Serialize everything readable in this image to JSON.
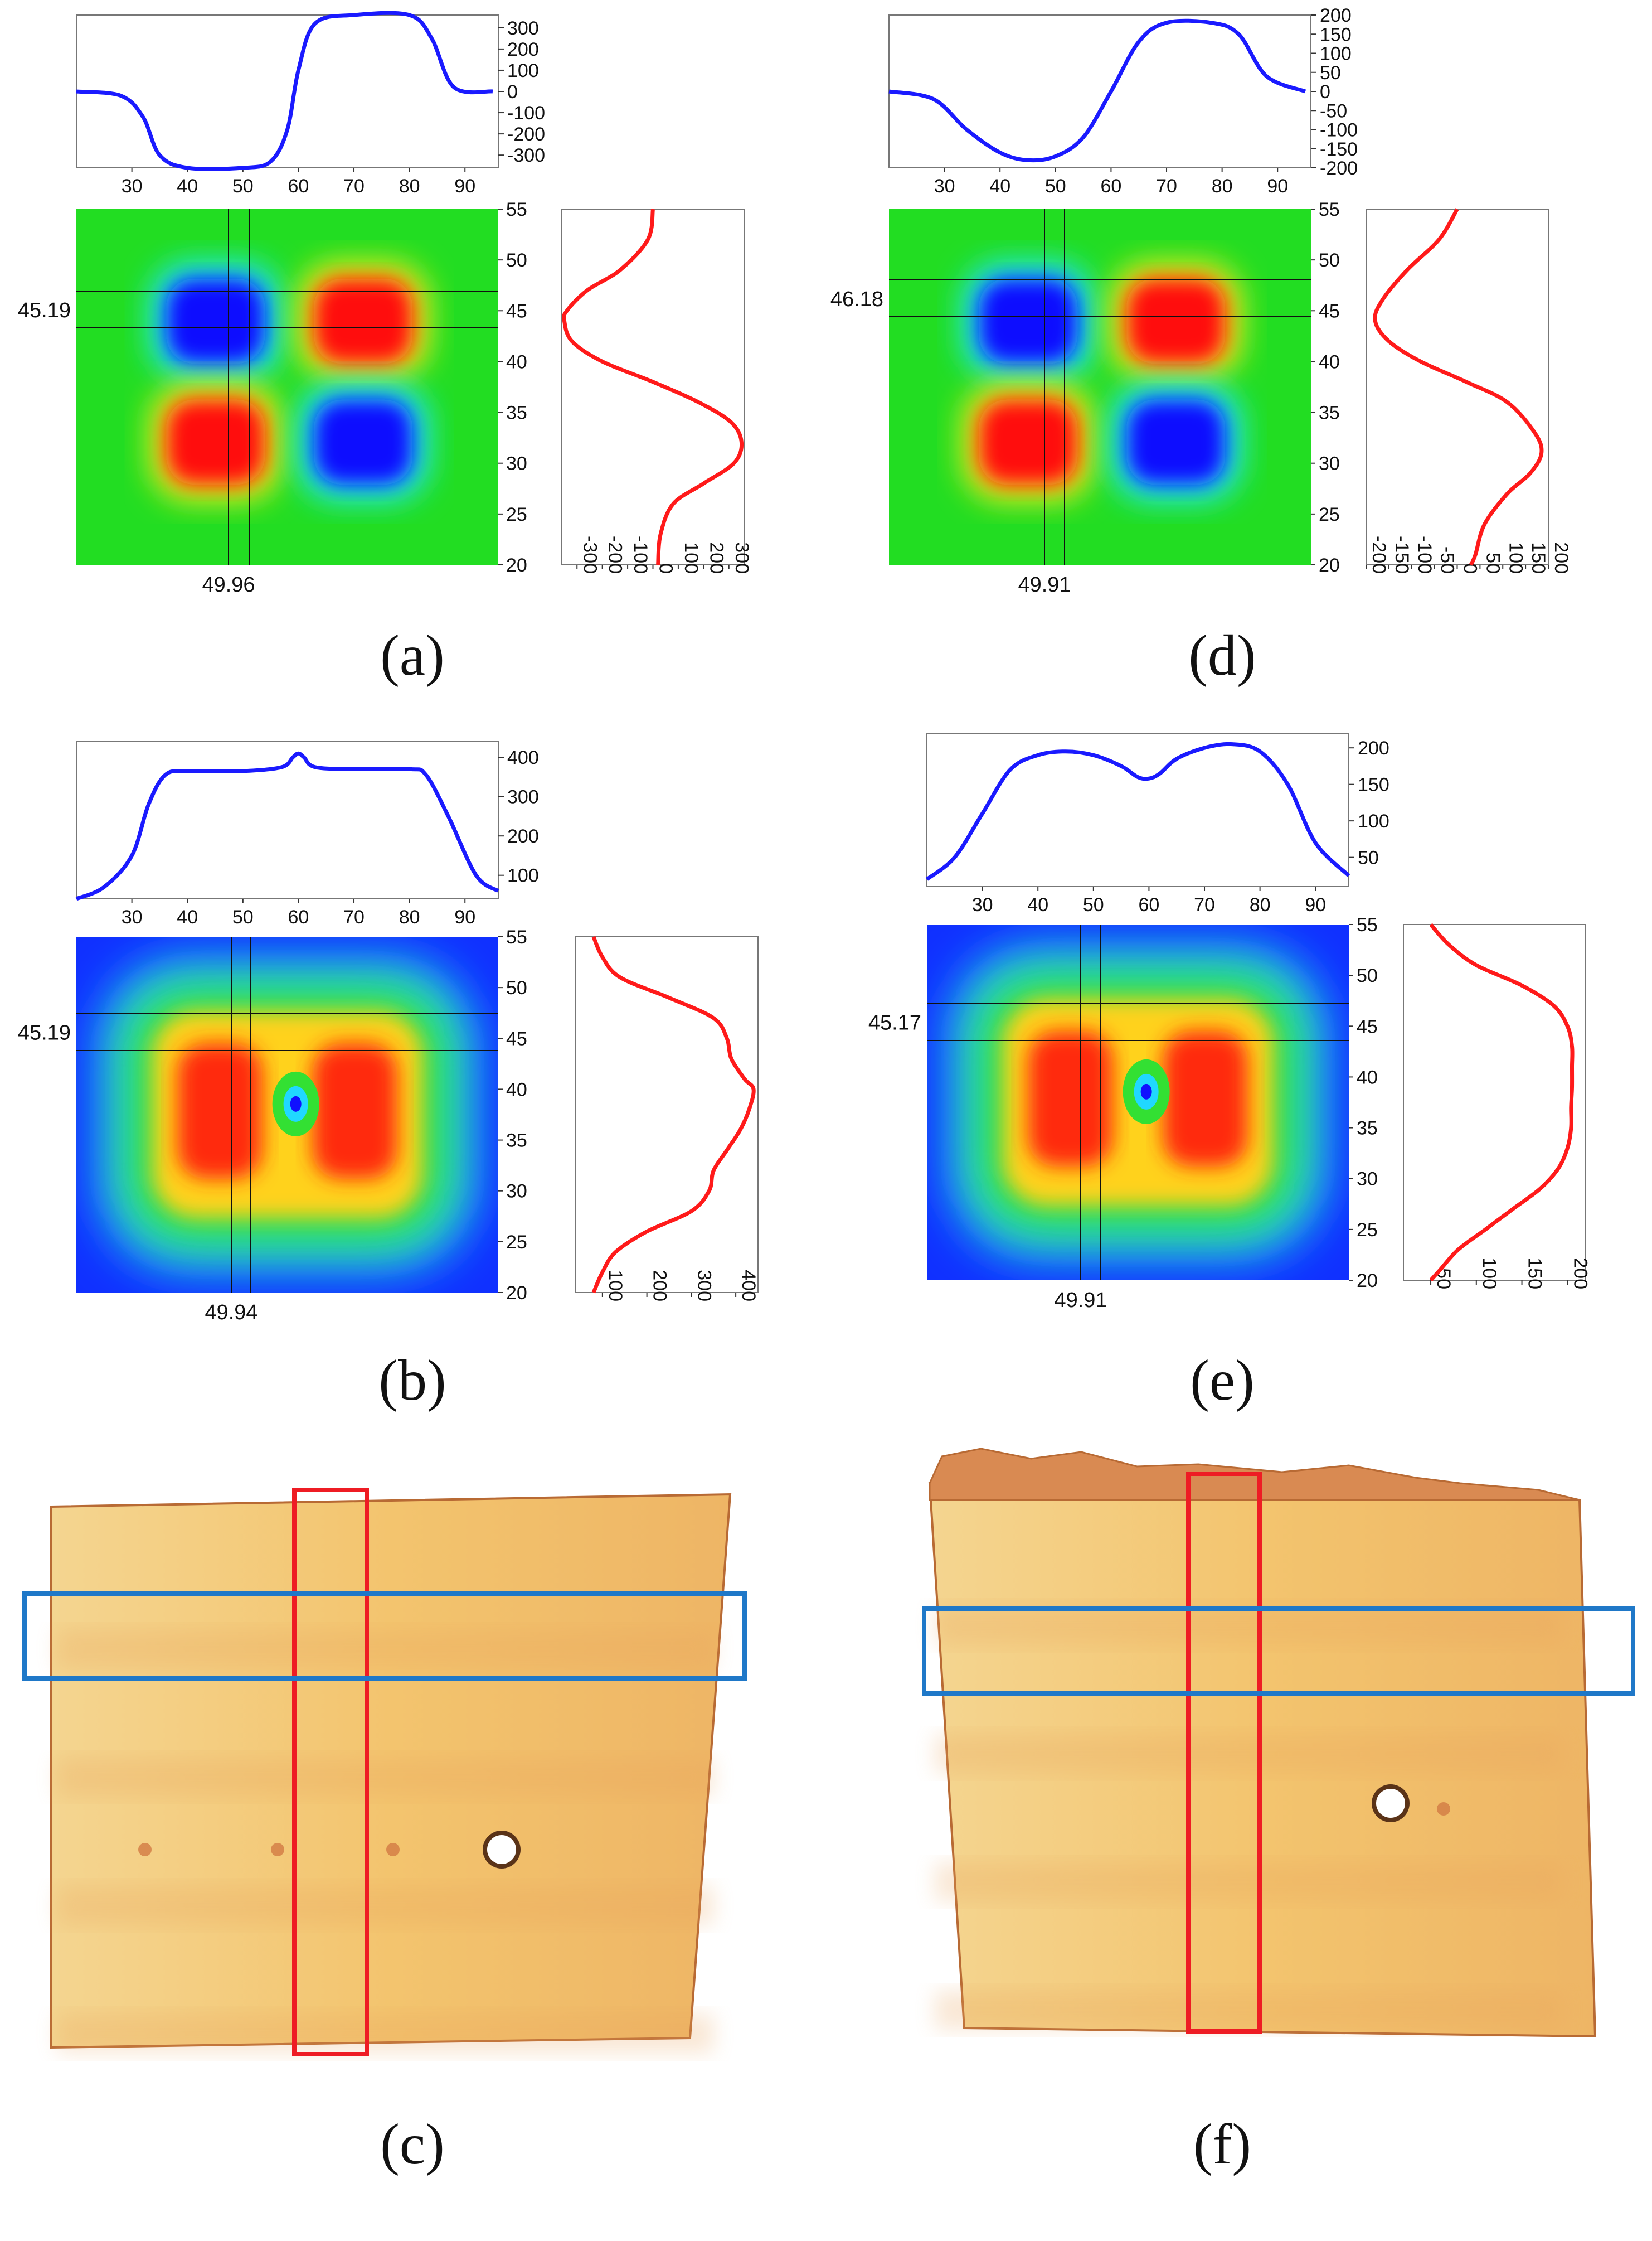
{
  "figure": {
    "panels": [
      {
        "id": "a",
        "label": "(a)",
        "kind": "map",
        "pattern": "quad",
        "map_colors": [
          "#1010ff",
          "#ff1010",
          "#ff1010",
          "#1010ff"
        ],
        "cursor_y_text": "45.19",
        "cursor_x_text": "49.96",
        "top_profile": {
          "yticks": [
            "300",
            "200",
            "100",
            "0",
            "-100",
            "-200",
            "-300"
          ],
          "xticks": [
            "30",
            "40",
            "50",
            "60",
            "70",
            "80",
            "90"
          ]
        },
        "right_profile": {
          "yticks": [
            "55",
            "50",
            "45",
            "40",
            "35",
            "30",
            "25",
            "20"
          ],
          "xticks": [
            "-300",
            "-200",
            "-100",
            "0",
            "100",
            "200",
            "300"
          ]
        }
      },
      {
        "id": "d",
        "label": "(d)",
        "kind": "map",
        "pattern": "quad",
        "map_colors": [
          "#1010ff",
          "#ff1010",
          "#ff1010",
          "#1010ff"
        ],
        "cursor_y_text": "46.18",
        "cursor_x_text": "49.91",
        "top_profile": {
          "yticks": [
            "200",
            "150",
            "100",
            "50",
            "0",
            "-50",
            "-100",
            "-150",
            "-200"
          ],
          "xticks": [
            "30",
            "40",
            "50",
            "60",
            "70",
            "80",
            "90"
          ]
        },
        "right_profile": {
          "yticks": [
            "55",
            "50",
            "45",
            "40",
            "35",
            "30",
            "25",
            "20"
          ],
          "xticks": [
            "-200",
            "-150",
            "-100",
            "-50",
            "0",
            "50",
            "100",
            "150",
            "200"
          ]
        }
      },
      {
        "id": "b",
        "label": "(b)",
        "kind": "map",
        "pattern": "magnitude",
        "cursor_y_text": "45.19",
        "cursor_x_text": "49.94",
        "top_profile": {
          "yticks": [
            "400",
            "300",
            "200",
            "100"
          ],
          "xticks": [
            "30",
            "40",
            "50",
            "60",
            "70",
            "80",
            "90"
          ]
        },
        "right_profile": {
          "yticks": [
            "55",
            "50",
            "45",
            "40",
            "35",
            "30",
            "25",
            "20"
          ],
          "xticks": [
            "100",
            "200",
            "300",
            "400"
          ]
        }
      },
      {
        "id": "e",
        "label": "(e)",
        "kind": "map",
        "pattern": "magnitude",
        "cursor_y_text": "45.17",
        "cursor_x_text": "49.91",
        "top_profile": {
          "yticks": [
            "200",
            "150",
            "100",
            "50"
          ],
          "xticks": [
            "30",
            "40",
            "50",
            "60",
            "70",
            "80",
            "90"
          ]
        },
        "right_profile": {
          "yticks": [
            "55",
            "50",
            "45",
            "40",
            "35",
            "30",
            "25",
            "20"
          ],
          "xticks": [
            "50",
            "100",
            "150",
            "200"
          ]
        }
      },
      {
        "id": "c",
        "label": "(c)",
        "kind": "photo"
      },
      {
        "id": "f",
        "label": "(f)",
        "kind": "photo"
      }
    ]
  },
  "colors": {
    "profile_horizontal": "#1a1aff",
    "profile_vertical": "#ff1a1a",
    "map_background": "#22dd22",
    "map_background_magnitude": "#1030ff",
    "photo_fill": "#f6cf7c",
    "photo_edge": "#b86a34",
    "roi_red": "#ee1c24",
    "roi_blue": "#1f78c8",
    "hole": "#ffffff"
  },
  "chart_data": [
    {
      "type": "line",
      "panel": "a",
      "orientation": "horizontal",
      "title": "",
      "x": [
        20,
        28,
        32,
        35,
        40,
        50,
        55,
        58,
        60,
        63,
        70,
        80,
        84,
        88,
        95
      ],
      "y": [
        0,
        -20,
        -120,
        -300,
        -360,
        -360,
        -330,
        -180,
        100,
        320,
        360,
        360,
        250,
        20,
        0
      ],
      "xlim": [
        20,
        96
      ],
      "ylim": [
        -360,
        360
      ],
      "xlabel": "",
      "ylabel": ""
    },
    {
      "type": "line",
      "panel": "a",
      "orientation": "vertical",
      "title": "",
      "y": [
        55,
        52,
        49,
        47,
        45,
        44,
        42,
        40,
        38,
        36,
        34,
        32,
        30,
        28,
        26,
        23,
        20
      ],
      "x": [
        0,
        -20,
        -130,
        -260,
        -340,
        -350,
        -320,
        -200,
        0,
        180,
        310,
        350,
        320,
        200,
        80,
        30,
        20
      ],
      "xlim": [
        -360,
        360
      ],
      "ylim": [
        20,
        55
      ],
      "xlabel": "",
      "ylabel": ""
    },
    {
      "type": "line",
      "panel": "d",
      "orientation": "horizontal",
      "title": "",
      "x": [
        20,
        28,
        34,
        40,
        45,
        50,
        55,
        60,
        65,
        70,
        78,
        83,
        88,
        95
      ],
      "y": [
        0,
        -20,
        -100,
        -160,
        -180,
        -170,
        -120,
        0,
        130,
        180,
        180,
        150,
        40,
        0
      ],
      "xlim": [
        20,
        96
      ],
      "ylim": [
        -200,
        200
      ],
      "xlabel": "",
      "ylabel": ""
    },
    {
      "type": "line",
      "panel": "d",
      "orientation": "vertical",
      "title": "",
      "y": [
        55,
        52,
        49,
        46,
        44,
        42,
        40,
        38,
        36,
        33,
        31,
        29,
        27,
        24,
        21,
        20
      ],
      "x": [
        0,
        -40,
        -110,
        -165,
        -180,
        -150,
        -80,
        20,
        110,
        170,
        185,
        160,
        110,
        60,
        40,
        30
      ],
      "xlim": [
        -200,
        200
      ],
      "ylim": [
        20,
        55
      ],
      "xlabel": "",
      "ylabel": ""
    },
    {
      "type": "line",
      "panel": "b",
      "orientation": "horizontal",
      "title": "",
      "x": [
        20,
        25,
        30,
        33,
        36,
        40,
        50,
        57,
        59,
        60,
        61,
        63,
        70,
        80,
        83,
        87,
        92,
        96
      ],
      "y": [
        40,
        70,
        150,
        280,
        355,
        365,
        365,
        375,
        400,
        410,
        400,
        375,
        370,
        370,
        355,
        250,
        100,
        60
      ],
      "xlim": [
        20,
        96
      ],
      "ylim": [
        40,
        440
      ],
      "xlabel": "",
      "ylabel": ""
    },
    {
      "type": "line",
      "panel": "b",
      "orientation": "vertical",
      "title": "",
      "y": [
        55,
        53,
        51,
        49,
        47,
        45,
        43,
        41,
        40,
        38,
        36,
        34,
        32,
        30,
        28,
        26,
        24,
        22,
        20
      ],
      "x": [
        80,
        100,
        140,
        250,
        350,
        380,
        390,
        420,
        440,
        430,
        410,
        380,
        350,
        340,
        300,
        200,
        130,
        100,
        80
      ],
      "xlim": [
        40,
        450
      ],
      "ylim": [
        20,
        55
      ],
      "xlabel": "",
      "ylabel": ""
    },
    {
      "type": "line",
      "panel": "e",
      "orientation": "horizontal",
      "title": "",
      "x": [
        20,
        25,
        30,
        35,
        40,
        45,
        50,
        55,
        58,
        60,
        62,
        65,
        70,
        75,
        80,
        85,
        90,
        96
      ],
      "y": [
        20,
        50,
        110,
        170,
        190,
        195,
        190,
        175,
        160,
        158,
        165,
        185,
        200,
        205,
        195,
        150,
        70,
        25
      ],
      "xlim": [
        20,
        96
      ],
      "ylim": [
        10,
        220
      ],
      "xlabel": "",
      "ylabel": ""
    },
    {
      "type": "line",
      "panel": "e",
      "orientation": "vertical",
      "title": "",
      "y": [
        55,
        53,
        51,
        49,
        47,
        45,
        43,
        41,
        39,
        37,
        35,
        33,
        31,
        29,
        27,
        25,
        23,
        21,
        20
      ],
      "x": [
        50,
        70,
        100,
        150,
        185,
        200,
        205,
        205,
        205,
        204,
        204,
        200,
        190,
        170,
        140,
        110,
        80,
        60,
        50
      ],
      "xlim": [
        20,
        220
      ],
      "ylim": [
        20,
        55
      ],
      "xlabel": "",
      "ylabel": ""
    }
  ]
}
